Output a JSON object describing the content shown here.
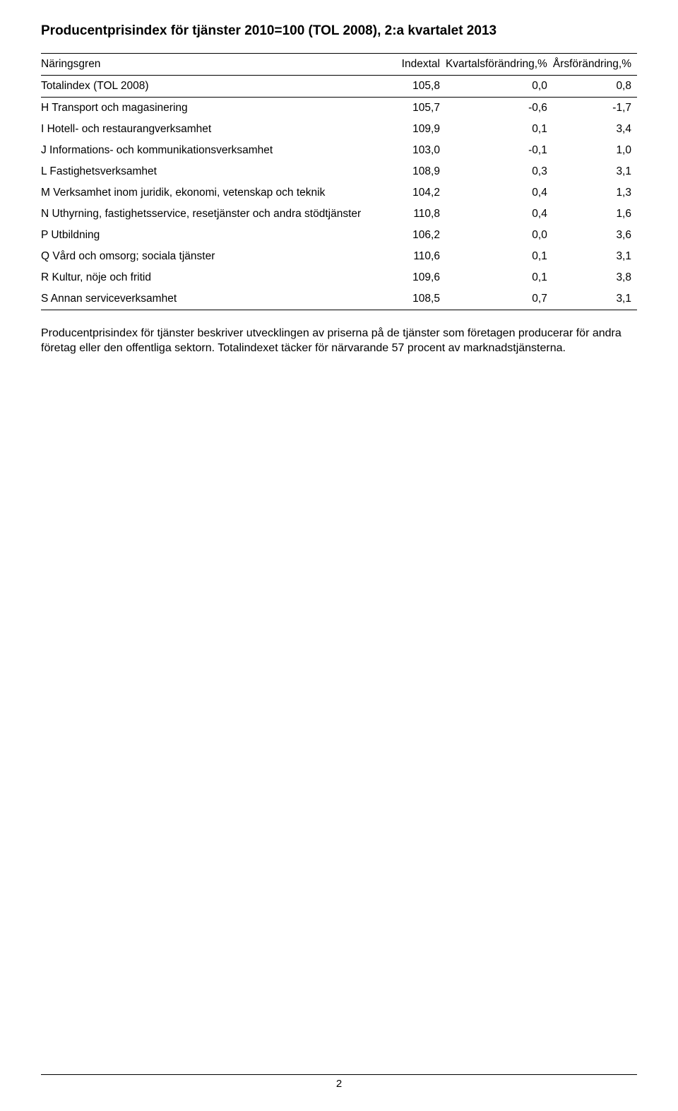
{
  "title": "Producentprisindex för tjänster 2010=100 (TOL 2008), 2:a kvartalet 2013",
  "table": {
    "columns": [
      "Näringsgren",
      "Indextal",
      "Kvartalsförändring,%",
      "Årsförändring,%"
    ],
    "total_row": {
      "label": "Totalindex (TOL 2008)",
      "index": "105,8",
      "q": "0,0",
      "y": "0,8"
    },
    "rows": [
      {
        "label": "H Transport och magasinering",
        "index": "105,7",
        "q": "-0,6",
        "y": "-1,7"
      },
      {
        "label": "I Hotell- och restaurangverksamhet",
        "index": "109,9",
        "q": "0,1",
        "y": "3,4"
      },
      {
        "label": "J Informations- och kommunikationsverksamhet",
        "index": "103,0",
        "q": "-0,1",
        "y": "1,0"
      },
      {
        "label": "L Fastighetsverksamhet",
        "index": "108,9",
        "q": "0,3",
        "y": "3,1"
      },
      {
        "label": "M Verksamhet inom juridik, ekonomi, vetenskap och teknik",
        "index": "104,2",
        "q": "0,4",
        "y": "1,3"
      },
      {
        "label": "N Uthyrning, fastighetsservice, resetjänster och andra stödtjänster",
        "index": "110,8",
        "q": "0,4",
        "y": "1,6"
      },
      {
        "label": "P Utbildning",
        "index": "106,2",
        "q": "0,0",
        "y": "3,6"
      },
      {
        "label": "Q Vård och omsorg; sociala tjänster",
        "index": "110,6",
        "q": "0,1",
        "y": "3,1"
      },
      {
        "label": "R Kultur, nöje och fritid",
        "index": "109,6",
        "q": "0,1",
        "y": "3,8"
      },
      {
        "label": "S Annan serviceverksamhet",
        "index": "108,5",
        "q": "0,7",
        "y": "3,1"
      }
    ]
  },
  "paragraph": "Producentprisindex för tjänster beskriver utvecklingen av priserna på de tjänster som företagen producerar för andra företag eller den offentliga sektorn. Totalindexet täcker för närvarande 57 procent av marknadstjänsterna.",
  "page_number": "2"
}
